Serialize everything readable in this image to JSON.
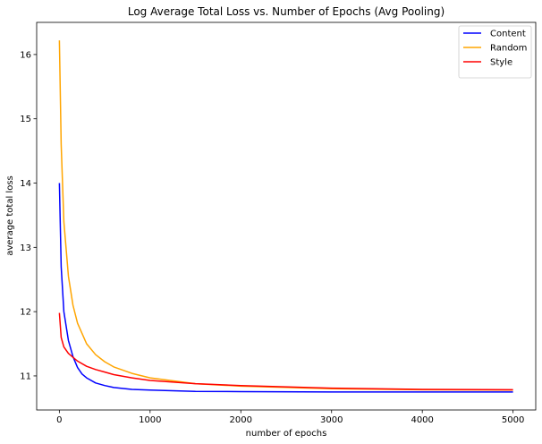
{
  "chart_data": {
    "type": "line",
    "title": "Log Average Total Loss vs. Number of Epochs (Avg Pooling)",
    "xlabel": "number of epochs",
    "ylabel": "average total loss",
    "xlim": [
      -250,
      5250
    ],
    "ylim": [
      10.47,
      16.5
    ],
    "xticks": [
      0,
      1000,
      2000,
      3000,
      4000,
      5000
    ],
    "yticks": [
      11,
      12,
      13,
      14,
      15,
      16
    ],
    "grid": false,
    "legend": "top-right",
    "series": [
      {
        "name": "Content",
        "color": "#0000ff",
        "x": [
          0,
          20,
          50,
          100,
          150,
          200,
          250,
          300,
          400,
          500,
          600,
          800,
          1000,
          1500,
          2000,
          3000,
          4000,
          5000
        ],
        "y": [
          14.0,
          12.7,
          12.0,
          11.55,
          11.3,
          11.13,
          11.03,
          10.97,
          10.89,
          10.85,
          10.82,
          10.79,
          10.78,
          10.76,
          10.755,
          10.75,
          10.75,
          10.75
        ]
      },
      {
        "name": "Random",
        "color": "#ffa500",
        "x": [
          0,
          20,
          50,
          100,
          150,
          200,
          300,
          400,
          500,
          600,
          800,
          1000,
          1500,
          2000,
          3000,
          4000,
          5000
        ],
        "y": [
          16.22,
          14.6,
          13.4,
          12.55,
          12.1,
          11.82,
          11.5,
          11.33,
          11.22,
          11.14,
          11.04,
          10.97,
          10.88,
          10.84,
          10.8,
          10.785,
          10.78
        ]
      },
      {
        "name": "Style",
        "color": "#ff0000",
        "x": [
          0,
          20,
          50,
          100,
          200,
          300,
          400,
          500,
          600,
          800,
          1000,
          1500,
          2000,
          3000,
          4000,
          5000
        ],
        "y": [
          11.98,
          11.6,
          11.45,
          11.35,
          11.23,
          11.15,
          11.1,
          11.06,
          11.02,
          10.97,
          10.93,
          10.88,
          10.85,
          10.81,
          10.79,
          10.785
        ]
      }
    ]
  }
}
